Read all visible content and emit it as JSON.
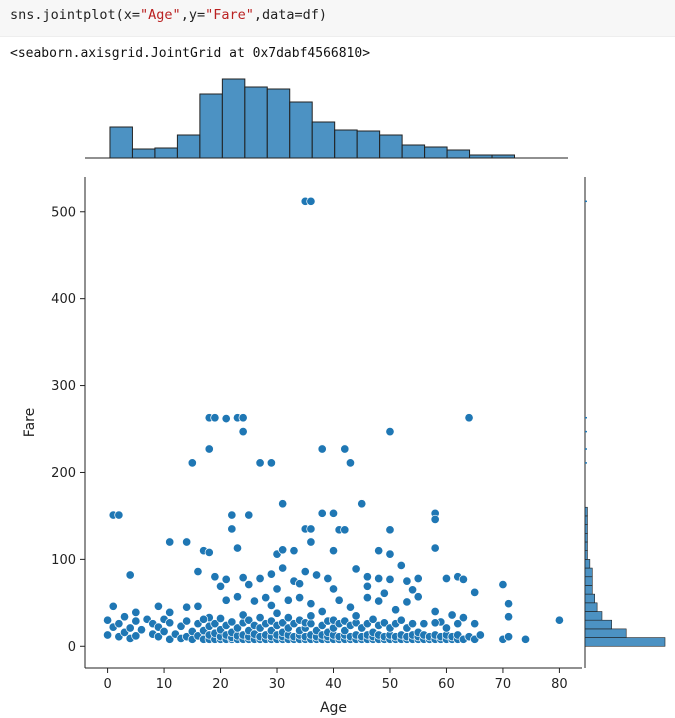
{
  "cell": {
    "code_prefix": "sns.jointplot(x=",
    "code_x": "\"Age\"",
    "code_mid": ",y=",
    "code_y": "\"Fare\"",
    "code_suffix": ",data=df)",
    "output_text": "<seaborn.axisgrid.JointGrid at 0x7dabf4566810>"
  },
  "chart_data": {
    "type": "scatter",
    "xlabel": "Age",
    "ylabel": "Fare",
    "xlim": [
      -4,
      84
    ],
    "ylim": [
      -25,
      540
    ],
    "xticks": [
      0,
      10,
      20,
      30,
      40,
      50,
      60,
      70,
      80
    ],
    "yticks": [
      0,
      100,
      200,
      300,
      400,
      500
    ],
    "color": "#1f77b4",
    "points": [
      [
        35,
        512
      ],
      [
        36,
        512
      ],
      [
        18,
        263
      ],
      [
        19,
        263
      ],
      [
        21,
        262
      ],
      [
        23,
        263
      ],
      [
        24,
        263
      ],
      [
        24,
        247
      ],
      [
        64,
        263
      ],
      [
        50,
        247
      ],
      [
        18,
        227
      ],
      [
        38,
        227
      ],
      [
        42,
        227
      ],
      [
        15,
        211
      ],
      [
        27,
        211
      ],
      [
        29,
        211
      ],
      [
        43,
        211
      ],
      [
        31,
        164
      ],
      [
        45,
        164
      ],
      [
        1,
        151
      ],
      [
        2,
        151
      ],
      [
        22,
        151
      ],
      [
        25,
        151
      ],
      [
        38,
        153
      ],
      [
        40,
        153
      ],
      [
        58,
        153
      ],
      [
        58,
        146
      ],
      [
        22,
        135
      ],
      [
        35,
        135
      ],
      [
        36,
        135
      ],
      [
        41,
        134
      ],
      [
        42,
        134
      ],
      [
        50,
        134
      ],
      [
        11,
        120
      ],
      [
        14,
        120
      ],
      [
        36,
        120
      ],
      [
        17,
        110
      ],
      [
        18,
        108
      ],
      [
        23,
        113
      ],
      [
        30,
        106
      ],
      [
        31,
        111
      ],
      [
        33,
        110
      ],
      [
        40,
        110
      ],
      [
        48,
        110
      ],
      [
        50,
        106
      ],
      [
        52,
        93
      ],
      [
        58,
        113
      ],
      [
        4,
        82
      ],
      [
        16,
        86
      ],
      [
        19,
        80
      ],
      [
        21,
        77
      ],
      [
        24,
        79
      ],
      [
        27,
        78
      ],
      [
        29,
        83
      ],
      [
        31,
        90
      ],
      [
        33,
        75
      ],
      [
        35,
        86
      ],
      [
        37,
        82
      ],
      [
        39,
        78
      ],
      [
        44,
        89
      ],
      [
        46,
        80
      ],
      [
        48,
        78
      ],
      [
        50,
        77
      ],
      [
        53,
        75
      ],
      [
        55,
        78
      ],
      [
        60,
        78
      ],
      [
        62,
        80
      ],
      [
        63,
        77
      ],
      [
        70,
        71
      ],
      [
        20,
        69
      ],
      [
        25,
        71
      ],
      [
        30,
        66
      ],
      [
        34,
        72
      ],
      [
        40,
        66
      ],
      [
        46,
        69
      ],
      [
        54,
        65
      ],
      [
        65,
        62
      ],
      [
        1,
        46
      ],
      [
        5,
        39
      ],
      [
        9,
        46
      ],
      [
        11,
        39
      ],
      [
        14,
        45
      ],
      [
        16,
        46
      ],
      [
        18,
        33
      ],
      [
        21,
        53
      ],
      [
        23,
        57
      ],
      [
        26,
        52
      ],
      [
        28,
        56
      ],
      [
        29,
        47
      ],
      [
        32,
        53
      ],
      [
        34,
        56
      ],
      [
        36,
        49
      ],
      [
        38,
        40
      ],
      [
        41,
        53
      ],
      [
        43,
        45
      ],
      [
        46,
        56
      ],
      [
        48,
        52
      ],
      [
        49,
        61
      ],
      [
        51,
        42
      ],
      [
        53,
        51
      ],
      [
        55,
        57
      ],
      [
        58,
        40
      ],
      [
        59,
        28
      ],
      [
        61,
        36
      ],
      [
        63,
        33
      ],
      [
        65,
        26
      ],
      [
        71,
        49
      ],
      [
        71,
        34
      ],
      [
        0,
        13
      ],
      [
        0,
        30
      ],
      [
        1,
        22
      ],
      [
        2,
        11
      ],
      [
        2,
        26
      ],
      [
        3,
        16
      ],
      [
        3,
        34
      ],
      [
        4,
        9
      ],
      [
        4,
        21
      ],
      [
        5,
        12
      ],
      [
        5,
        29
      ],
      [
        6,
        19
      ],
      [
        7,
        31
      ],
      [
        8,
        14
      ],
      [
        8,
        26
      ],
      [
        9,
        11
      ],
      [
        9,
        22
      ],
      [
        10,
        17
      ],
      [
        10,
        31
      ],
      [
        11,
        8
      ],
      [
        11,
        27
      ],
      [
        12,
        14
      ],
      [
        13,
        9
      ],
      [
        13,
        23
      ],
      [
        14,
        11
      ],
      [
        14,
        29
      ],
      [
        15,
        8
      ],
      [
        15,
        17
      ],
      [
        16,
        12
      ],
      [
        16,
        26
      ],
      [
        17,
        8
      ],
      [
        17,
        18
      ],
      [
        17,
        31
      ],
      [
        18,
        8
      ],
      [
        18,
        13
      ],
      [
        18,
        23
      ],
      [
        19,
        8
      ],
      [
        19,
        15
      ],
      [
        19,
        26
      ],
      [
        20,
        8
      ],
      [
        20,
        11
      ],
      [
        20,
        19
      ],
      [
        20,
        32
      ],
      [
        21,
        8
      ],
      [
        21,
        13
      ],
      [
        21,
        24
      ],
      [
        22,
        8
      ],
      [
        22,
        10
      ],
      [
        22,
        16
      ],
      [
        22,
        28
      ],
      [
        23,
        8
      ],
      [
        23,
        12
      ],
      [
        23,
        21
      ],
      [
        24,
        8
      ],
      [
        24,
        13
      ],
      [
        24,
        27
      ],
      [
        24,
        36
      ],
      [
        25,
        8
      ],
      [
        25,
        11
      ],
      [
        25,
        18
      ],
      [
        25,
        30
      ],
      [
        26,
        8
      ],
      [
        26,
        14
      ],
      [
        26,
        24
      ],
      [
        27,
        8
      ],
      [
        27,
        11
      ],
      [
        27,
        21
      ],
      [
        27,
        33
      ],
      [
        28,
        8
      ],
      [
        28,
        13
      ],
      [
        28,
        26
      ],
      [
        29,
        8
      ],
      [
        29,
        11
      ],
      [
        29,
        18
      ],
      [
        29,
        29
      ],
      [
        30,
        8
      ],
      [
        30,
        13
      ],
      [
        30,
        24
      ],
      [
        30,
        38
      ],
      [
        31,
        8
      ],
      [
        31,
        11
      ],
      [
        31,
        16
      ],
      [
        31,
        27
      ],
      [
        32,
        8
      ],
      [
        32,
        13
      ],
      [
        32,
        21
      ],
      [
        32,
        33
      ],
      [
        33,
        8
      ],
      [
        33,
        11
      ],
      [
        33,
        26
      ],
      [
        34,
        8
      ],
      [
        34,
        13
      ],
      [
        34,
        18
      ],
      [
        34,
        30
      ],
      [
        35,
        8
      ],
      [
        35,
        11
      ],
      [
        35,
        21
      ],
      [
        35,
        27
      ],
      [
        36,
        8
      ],
      [
        36,
        13
      ],
      [
        36,
        26
      ],
      [
        36,
        35
      ],
      [
        37,
        8
      ],
      [
        37,
        11
      ],
      [
        37,
        18
      ],
      [
        38,
        8
      ],
      [
        38,
        13
      ],
      [
        38,
        24
      ],
      [
        39,
        8
      ],
      [
        39,
        11
      ],
      [
        39,
        16
      ],
      [
        39,
        29
      ],
      [
        40,
        8
      ],
      [
        40,
        13
      ],
      [
        40,
        21
      ],
      [
        40,
        30
      ],
      [
        41,
        8
      ],
      [
        41,
        11
      ],
      [
        41,
        26
      ],
      [
        42,
        8
      ],
      [
        42,
        13
      ],
      [
        42,
        18
      ],
      [
        42,
        29
      ],
      [
        43,
        8
      ],
      [
        43,
        11
      ],
      [
        43,
        24
      ],
      [
        44,
        8
      ],
      [
        44,
        13
      ],
      [
        44,
        27
      ],
      [
        44,
        35
      ],
      [
        45,
        8
      ],
      [
        45,
        11
      ],
      [
        45,
        21
      ],
      [
        46,
        8
      ],
      [
        46,
        13
      ],
      [
        46,
        26
      ],
      [
        47,
        8
      ],
      [
        47,
        11
      ],
      [
        47,
        16
      ],
      [
        47,
        31
      ],
      [
        48,
        8
      ],
      [
        48,
        13
      ],
      [
        48,
        24
      ],
      [
        49,
        8
      ],
      [
        49,
        11
      ],
      [
        49,
        27
      ],
      [
        50,
        8
      ],
      [
        50,
        13
      ],
      [
        50,
        21
      ],
      [
        51,
        8
      ],
      [
        51,
        11
      ],
      [
        51,
        26
      ],
      [
        52,
        8
      ],
      [
        52,
        13
      ],
      [
        52,
        30
      ],
      [
        53,
        8
      ],
      [
        53,
        11
      ],
      [
        53,
        21
      ],
      [
        54,
        8
      ],
      [
        54,
        13
      ],
      [
        54,
        26
      ],
      [
        55,
        8
      ],
      [
        55,
        11
      ],
      [
        55,
        16
      ],
      [
        56,
        8
      ],
      [
        56,
        13
      ],
      [
        56,
        26
      ],
      [
        57,
        8
      ],
      [
        57,
        11
      ],
      [
        58,
        8
      ],
      [
        58,
        13
      ],
      [
        58,
        27
      ],
      [
        59,
        8
      ],
      [
        59,
        11
      ],
      [
        60,
        8
      ],
      [
        60,
        13
      ],
      [
        60,
        21
      ],
      [
        61,
        8
      ],
      [
        61,
        11
      ],
      [
        62,
        8
      ],
      [
        62,
        13
      ],
      [
        62,
        26
      ],
      [
        63,
        8
      ],
      [
        64,
        11
      ],
      [
        65,
        8
      ],
      [
        66,
        13
      ],
      [
        70,
        8
      ],
      [
        71,
        11
      ],
      [
        74,
        8
      ],
      [
        80,
        30
      ]
    ],
    "x_marginal": {
      "bin_edges": [
        0.42,
        4.4,
        8.38,
        12.36,
        16.34,
        20.32,
        24.3,
        28.27,
        32.25,
        36.23,
        40.21,
        44.19,
        48.17,
        52.15,
        56.13,
        60.11,
        64.09,
        68.07,
        72.05,
        76.03,
        80.0
      ],
      "counts": [
        31,
        9,
        10,
        23,
        64,
        79,
        71,
        69,
        56,
        36,
        28,
        27,
        23,
        13,
        11,
        8,
        3,
        3,
        0,
        0
      ]
    },
    "y_marginal": {
      "bin_edges": [
        0,
        10,
        20,
        30,
        40,
        50,
        60,
        70,
        80,
        90,
        100,
        110,
        120,
        130,
        140,
        150,
        160
      ],
      "counts": [
        33,
        17,
        11,
        7,
        5,
        4,
        3,
        3,
        3,
        2,
        1,
        1,
        1,
        1,
        1,
        1
      ]
    }
  }
}
